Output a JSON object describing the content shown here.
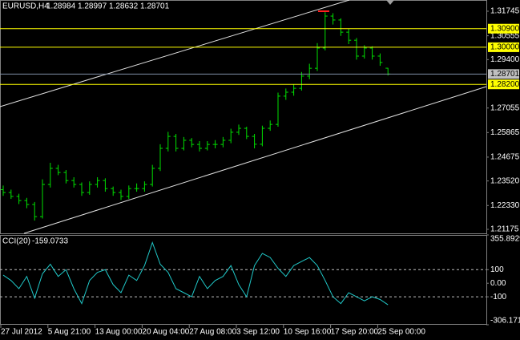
{
  "chart_data": [
    {
      "type": "ohlc",
      "title": "EURUSD,H4",
      "color": "#00e000",
      "categories": [
        "27 Jul 2012",
        null,
        null,
        null,
        null,
        null,
        "5 Aug 21:00",
        null,
        null,
        null,
        null,
        null,
        "13 Aug 00:00",
        null,
        null,
        null,
        null,
        null,
        "20 Aug 04:00",
        null,
        null,
        null,
        null,
        null,
        "27 Aug 08:00",
        null,
        null,
        null,
        null,
        null,
        "3 Sep 12:00",
        null,
        null,
        null,
        null,
        null,
        "10 Sep 16:00",
        null,
        null,
        null,
        null,
        null,
        "17 Sep 20:00",
        null,
        null,
        null,
        null,
        null,
        "25 Sep 00:00",
        null
      ],
      "open": [
        1.231,
        1.2296,
        1.2277,
        1.2257,
        1.2238,
        1.2179,
        1.2335,
        1.2413,
        1.2393,
        1.2354,
        1.2335,
        1.2296,
        1.2335,
        1.2354,
        1.2315,
        1.2296,
        1.2277,
        1.2315,
        1.2315,
        1.2335,
        1.2413,
        1.251,
        1.2568,
        1.251,
        1.2549,
        1.2529,
        1.251,
        1.2529,
        1.2529,
        1.2549,
        1.2588,
        1.2607,
        1.2568,
        1.253,
        1.2607,
        1.2626,
        1.2763,
        1.2782,
        1.2801,
        1.286,
        1.2898,
        1.2996,
        1.3151,
        1.3132,
        1.3073,
        1.3034,
        1.2957,
        1.2996,
        1.2957,
        1.28984
      ],
      "high": [
        1.233,
        1.231,
        1.229,
        1.227,
        1.225,
        1.236,
        1.244,
        1.243,
        1.2405,
        1.237,
        1.2345,
        1.235,
        1.237,
        1.2365,
        1.2325,
        1.231,
        1.233,
        1.234,
        1.235,
        1.243,
        1.253,
        1.259,
        1.258,
        1.2565,
        1.256,
        1.2545,
        1.2545,
        1.255,
        1.2565,
        1.2605,
        1.2625,
        1.2615,
        1.258,
        1.262,
        1.2645,
        1.278,
        1.28,
        1.282,
        1.288,
        1.292,
        1.302,
        1.317,
        1.3165,
        1.314,
        1.309,
        1.3045,
        1.301,
        1.3005,
        1.297,
        1.28997
      ],
      "low": [
        1.228,
        1.2265,
        1.224,
        1.222,
        1.216,
        1.217,
        1.232,
        1.238,
        1.234,
        1.232,
        1.228,
        1.2285,
        1.232,
        1.23,
        1.228,
        1.226,
        1.2265,
        1.23,
        1.23,
        1.2325,
        1.24,
        1.2495,
        1.2495,
        1.25,
        1.2515,
        1.2495,
        1.25,
        1.251,
        1.2515,
        1.2535,
        1.2575,
        1.2555,
        1.251,
        1.252,
        1.2595,
        1.2615,
        1.2745,
        1.2765,
        1.279,
        1.2845,
        1.2885,
        1.2985,
        1.311,
        1.3055,
        1.3015,
        1.294,
        1.2945,
        1.294,
        1.291,
        1.28632
      ],
      "close": [
        1.2296,
        1.2277,
        1.2257,
        1.2238,
        1.2179,
        1.2335,
        1.2413,
        1.2393,
        1.2354,
        1.2335,
        1.2296,
        1.2335,
        1.2354,
        1.2315,
        1.2296,
        1.2277,
        1.2315,
        1.2315,
        1.2335,
        1.2413,
        1.251,
        1.2568,
        1.251,
        1.2549,
        1.2529,
        1.251,
        1.2529,
        1.2529,
        1.2549,
        1.2588,
        1.2607,
        1.2568,
        1.253,
        1.2607,
        1.2626,
        1.2763,
        1.2782,
        1.2801,
        1.286,
        1.2898,
        1.2996,
        1.3151,
        1.3132,
        1.3073,
        1.3034,
        1.2957,
        1.2996,
        1.2957,
        1.2926,
        1.28701
      ],
      "ylim": [
        1.20981,
        1.32289
      ],
      "yticks": [
        1.31745,
        1.30555,
        {
          "value": 1.294,
          "label": "1.29400"
        },
        1.27055,
        1.25865,
        1.24675,
        {
          "value": 1.2352,
          "label": "1.23520"
        },
        {
          "value": 1.2233,
          "label": "1.22330"
        },
        1.21175
      ],
      "levels": [
        {
          "value": 1.309,
          "label": "1.30900"
        },
        {
          "value": 1.3,
          "label": "1.30000"
        },
        {
          "value": 1.282,
          "label": "1.28200"
        }
      ],
      "level_color": "#ffff00",
      "bid": 1.28701,
      "bid_color": "#8090a8"
    },
    {
      "type": "line",
      "title": "CCI(20)",
      "color": "#20c8c8",
      "values": [
        60,
        20,
        -40,
        50,
        -110,
        70,
        140,
        50,
        100,
        -40,
        -150,
        20,
        80,
        100,
        -10,
        -70,
        60,
        20,
        130,
        300,
        140,
        80,
        -40,
        -70,
        -100,
        50,
        -40,
        20,
        50,
        130,
        -10,
        -100,
        130,
        220,
        190,
        110,
        50,
        130,
        160,
        190,
        130,
        20,
        -100,
        -150,
        -70,
        -100,
        -130,
        -100,
        -120,
        -159.0733
      ],
      "ylim": [
        -306.171,
        355.8929
      ],
      "yticks": [
        355.8929,
        100,
        {
          "value": 0,
          "label": "0.00"
        },
        -100,
        {
          "value": -306.171,
          "label": "-306.1710"
        }
      ],
      "levels": [
        100,
        -100
      ]
    }
  ]
}
